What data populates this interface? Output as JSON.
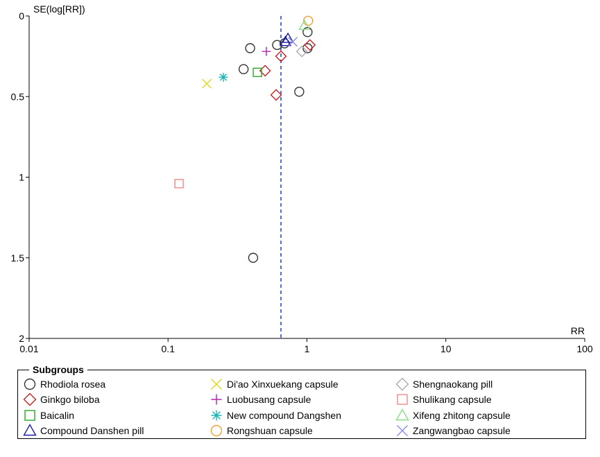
{
  "chart_data": {
    "type": "scatter",
    "title": "",
    "xlabel": "RR",
    "ylabel": "SE(log[RR])",
    "x_scale": "log",
    "xlim": [
      0.01,
      100
    ],
    "ylim": [
      0,
      2
    ],
    "y_reversed": true,
    "x_ticks": [
      "0.01",
      "0.1",
      "1",
      "10",
      "100"
    ],
    "y_ticks": [
      "0",
      "0.5",
      "1",
      "1.5",
      "2"
    ],
    "reference_line": {
      "x": 0.65,
      "style": "dashed",
      "color": "#1f3fbf"
    },
    "legend_title": "Subgroups",
    "legend_position": "bottom",
    "series": [
      {
        "name": "Rhodiola rosea",
        "marker": "circle",
        "color": "#333333",
        "points": [
          [
            0.39,
            0.2
          ],
          [
            0.61,
            0.18
          ],
          [
            0.69,
            0.17
          ],
          [
            1.01,
            0.1
          ],
          [
            1.01,
            0.2
          ],
          [
            0.35,
            0.33
          ],
          [
            0.88,
            0.47
          ],
          [
            0.41,
            1.5
          ]
        ]
      },
      {
        "name": "Ginkgo biloba",
        "marker": "diamond",
        "color": "#cc2222",
        "points": [
          [
            0.5,
            0.34
          ],
          [
            0.65,
            0.25
          ],
          [
            1.05,
            0.18
          ],
          [
            0.6,
            0.49
          ]
        ]
      },
      {
        "name": "Baicalin",
        "marker": "square",
        "color": "#22aa22",
        "points": [
          [
            0.44,
            0.35
          ]
        ]
      },
      {
        "name": "Compound Danshen pill",
        "marker": "triangle",
        "color": "#1a1aa8",
        "points": [
          [
            0.73,
            0.14
          ],
          [
            0.7,
            0.16
          ]
        ]
      },
      {
        "name": "Di'ao Xinxuekang capsule",
        "marker": "x",
        "color": "#d9d91a",
        "points": [
          [
            0.19,
            0.42
          ]
        ]
      },
      {
        "name": "Luobusang capsule",
        "marker": "plus",
        "color": "#b422b4",
        "points": [
          [
            0.51,
            0.22
          ]
        ]
      },
      {
        "name": "New compound Dangshen",
        "marker": "asterisk",
        "color": "#1ab4b4",
        "points": [
          [
            0.25,
            0.38
          ]
        ]
      },
      {
        "name": "Rongshuan capsule",
        "marker": "circle",
        "color": "#f0a030",
        "points": [
          [
            1.02,
            0.03
          ]
        ]
      },
      {
        "name": "Shengnaokang pill",
        "marker": "diamond",
        "color": "#aaaaaa",
        "points": [
          [
            0.92,
            0.22
          ]
        ]
      },
      {
        "name": "Shulikang capsule",
        "marker": "square",
        "color": "#f08a8a",
        "points": [
          [
            0.12,
            1.04
          ]
        ]
      },
      {
        "name": "Xifeng zhitong capsule",
        "marker": "triangle",
        "color": "#88dd88",
        "points": [
          [
            0.96,
            0.06
          ]
        ]
      },
      {
        "name": "Zangwangbao capsule",
        "marker": "x",
        "color": "#8888ee",
        "points": [
          [
            0.79,
            0.16
          ]
        ]
      }
    ]
  }
}
